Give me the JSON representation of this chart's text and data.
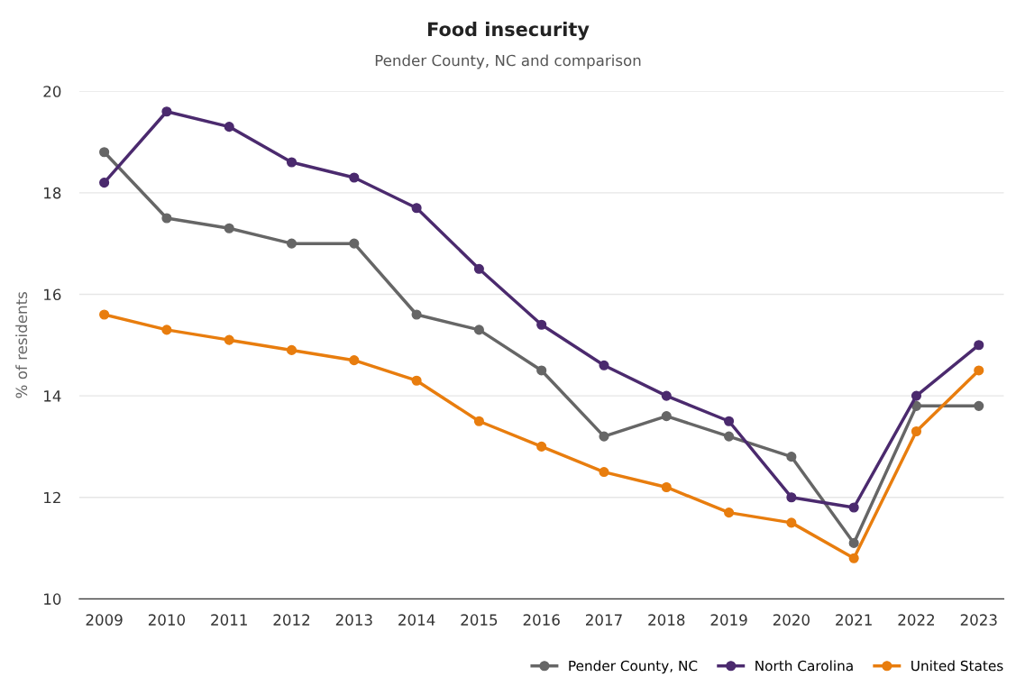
{
  "chart_data": {
    "type": "line",
    "title": "Food insecurity",
    "subtitle": "Pender County, NC and comparison",
    "ylabel": "% of residents",
    "categories": [
      "2009",
      "2010",
      "2011",
      "2012",
      "2013",
      "2014",
      "2015",
      "2016",
      "2017",
      "2018",
      "2019",
      "2020",
      "2021",
      "2022",
      "2023"
    ],
    "series": [
      {
        "name": "Pender County, NC",
        "color": "#666666",
        "values": [
          18.8,
          17.5,
          17.3,
          17.0,
          17.0,
          15.6,
          15.3,
          14.5,
          13.2,
          13.6,
          13.2,
          12.8,
          11.1,
          13.8,
          13.8
        ]
      },
      {
        "name": "North Carolina",
        "color": "#4b2a6e",
        "values": [
          18.2,
          19.6,
          19.3,
          18.6,
          18.3,
          17.7,
          16.5,
          15.4,
          14.6,
          14.0,
          13.5,
          12.0,
          11.8,
          14.0,
          15.0
        ]
      },
      {
        "name": "United States",
        "color": "#e87d0e",
        "values": [
          15.6,
          15.3,
          15.1,
          14.9,
          14.7,
          14.3,
          13.5,
          13.0,
          12.5,
          12.2,
          11.7,
          11.5,
          10.8,
          13.3,
          14.5
        ]
      }
    ],
    "ylim": [
      10,
      20
    ],
    "yticks": [
      10,
      12,
      14,
      16,
      18,
      20
    ],
    "grid": "y",
    "legend": "bottom right",
    "marker": "circle",
    "line_style": "solid"
  }
}
